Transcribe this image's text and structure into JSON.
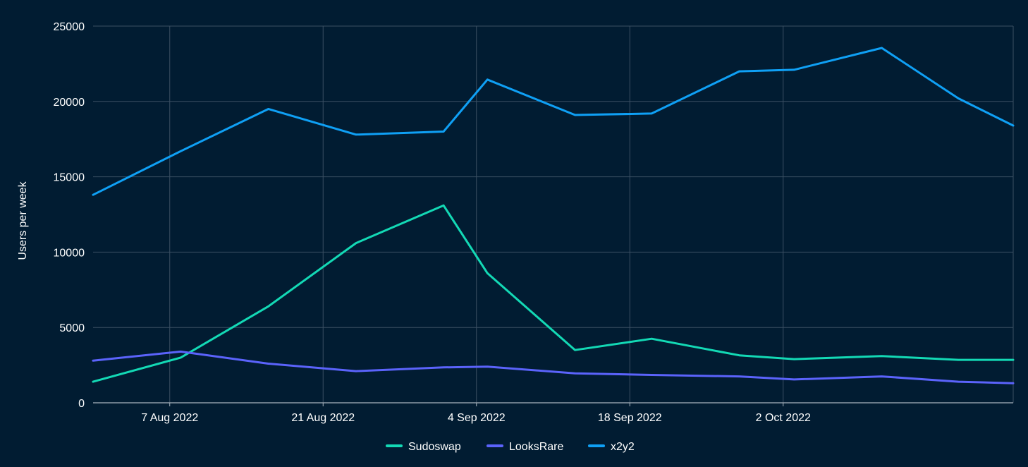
{
  "chart_data": {
    "type": "line",
    "title": "",
    "xlabel": "",
    "ylabel": "Users per week",
    "ylim": [
      0,
      25000
    ],
    "yticks": [
      0,
      5000,
      10000,
      15000,
      20000,
      25000
    ],
    "xlim": [
      "2022-07-31",
      "2022-10-23"
    ],
    "xticks": [
      {
        "date": "2022-08-07",
        "label": "7 Aug 2022"
      },
      {
        "date": "2022-08-21",
        "label": "21 Aug 2022"
      },
      {
        "date": "2022-09-04",
        "label": "4 Sep 2022"
      },
      {
        "date": "2022-09-18",
        "label": "18 Sep 2022"
      },
      {
        "date": "2022-10-02",
        "label": "2 Oct 2022"
      }
    ],
    "x": [
      "2022-07-31",
      "2022-08-08",
      "2022-08-16",
      "2022-08-24",
      "2022-09-01",
      "2022-09-05",
      "2022-09-13",
      "2022-09-20",
      "2022-09-28",
      "2022-10-03",
      "2022-10-11",
      "2022-10-18",
      "2022-10-23"
    ],
    "series": [
      {
        "name": "Sudoswap",
        "color": "#13d9b5",
        "values": [
          1400,
          3000,
          6400,
          10600,
          13100,
          8600,
          3500,
          4250,
          3150,
          2900,
          3100,
          2850,
          2850
        ]
      },
      {
        "name": "LooksRare",
        "color": "#5b63fb",
        "values": [
          2800,
          3400,
          2600,
          2100,
          2350,
          2400,
          1950,
          1850,
          1750,
          1550,
          1750,
          1400,
          1300
        ]
      },
      {
        "name": "x2y2",
        "color": "#0fa0f5",
        "values": [
          13800,
          16700,
          19500,
          17800,
          18000,
          21450,
          19100,
          19200,
          22000,
          22100,
          23550,
          20200,
          18400
        ]
      }
    ],
    "grid": true,
    "legend_position": "bottom"
  }
}
